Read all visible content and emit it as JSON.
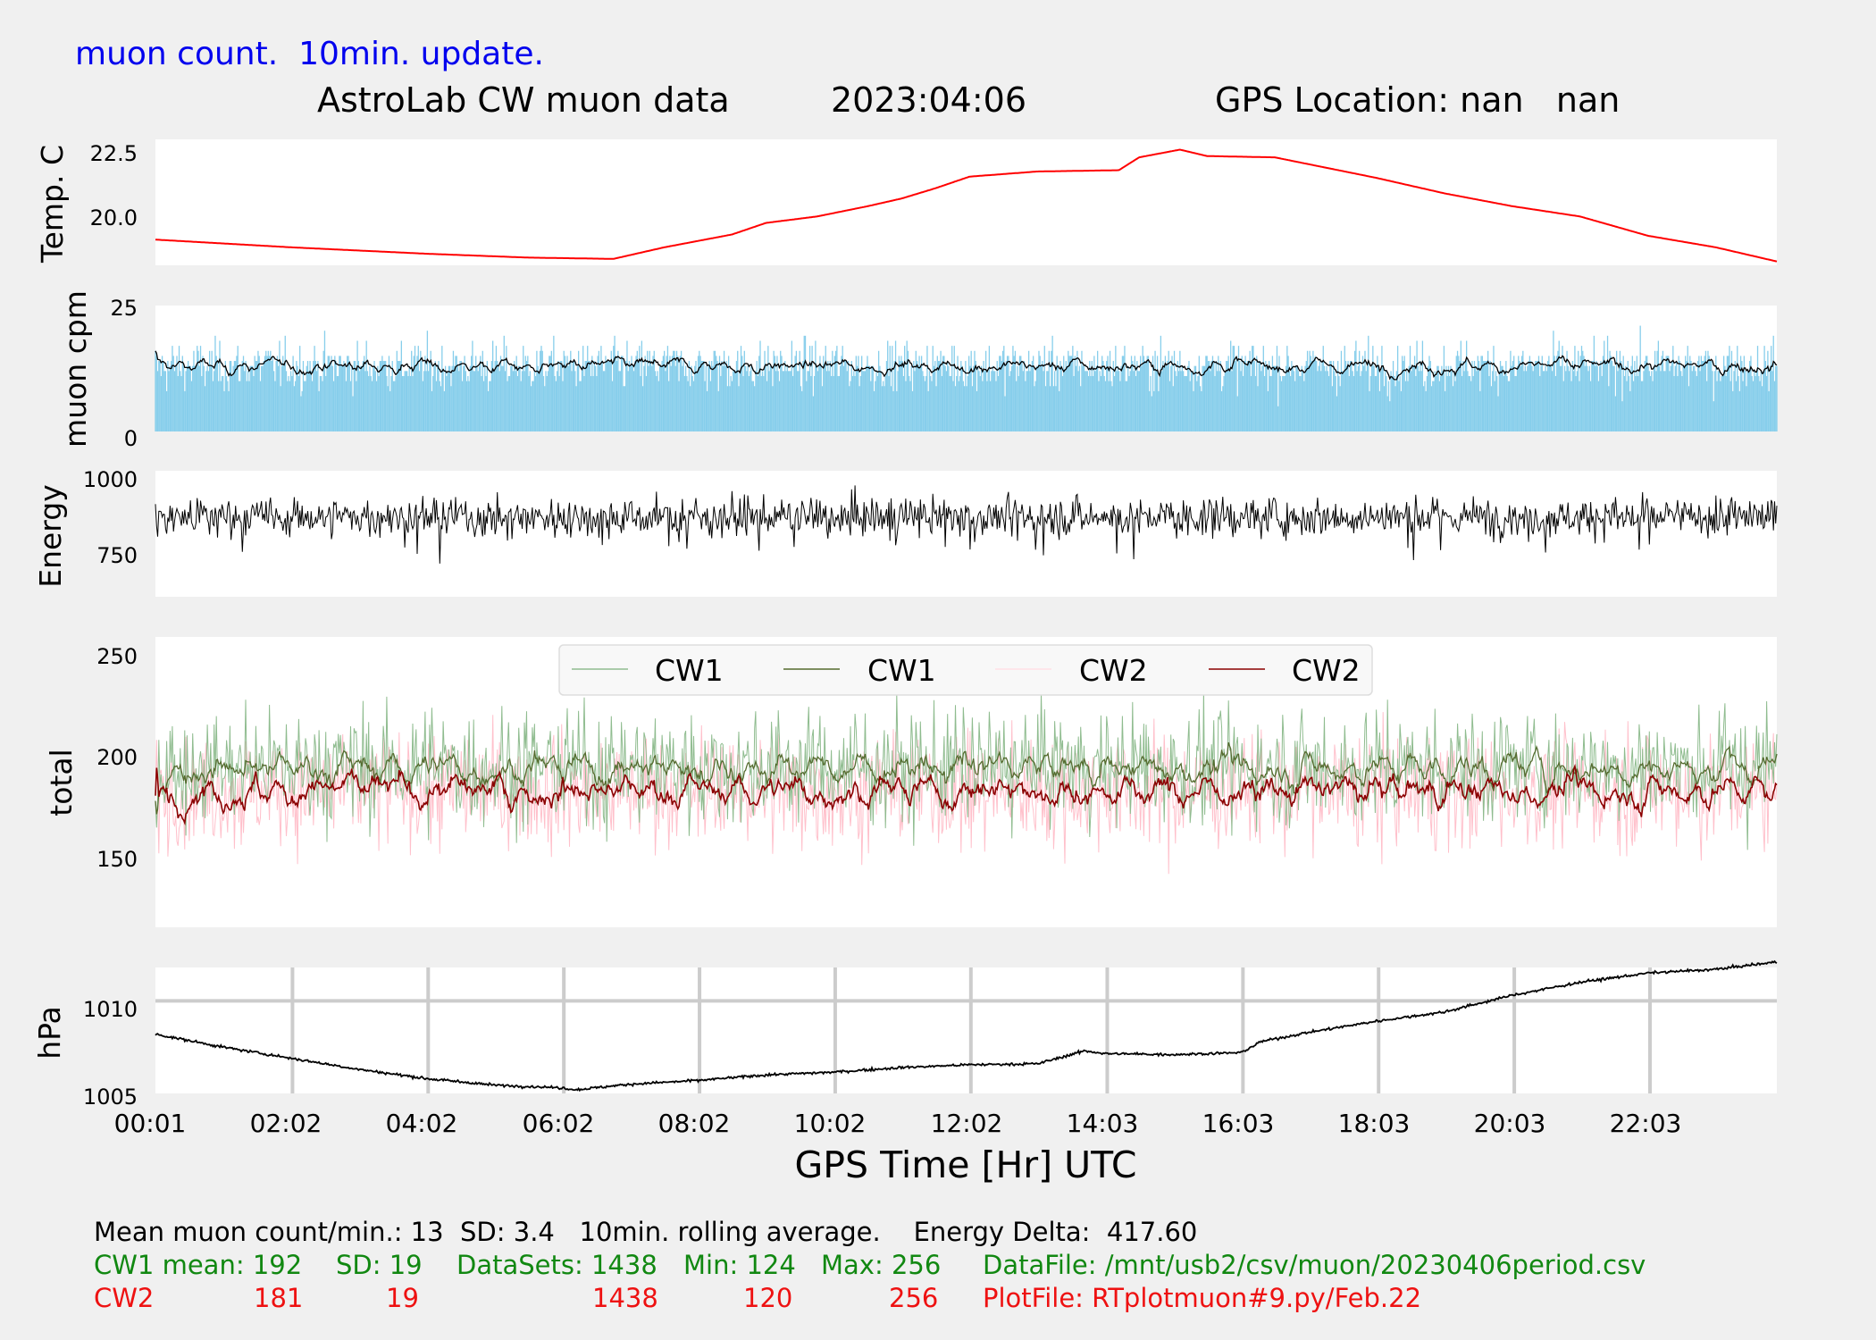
{
  "header": {
    "update_tag": "muon count.  10min. update.",
    "title": "AstroLab CW muon data",
    "date": "2023:04:06",
    "gps_location": "GPS Location: nan   nan"
  },
  "chart_data": [
    {
      "type": "line",
      "ylabel": "Temp. C",
      "yticks": [
        "20.0",
        "22.5"
      ],
      "ylim": [
        18.2,
        23.1
      ],
      "color": "#ff0000",
      "series": [
        {
          "x": [
            0,
            2,
            4,
            5.5,
            6.75,
            7,
            7.5,
            8.5,
            9,
            9.75,
            10.5,
            11,
            11.5,
            12,
            13,
            14.2,
            14.5,
            15,
            15.1,
            15.5,
            16.5,
            18,
            19,
            20,
            21,
            22,
            23,
            23.9
          ],
          "values": [
            19.2,
            18.9,
            18.65,
            18.5,
            18.45,
            18.6,
            18.9,
            19.4,
            19.85,
            20.1,
            20.5,
            20.8,
            21.2,
            21.65,
            21.85,
            21.9,
            22.4,
            22.65,
            22.7,
            22.45,
            22.4,
            21.6,
            21.0,
            20.5,
            20.1,
            19.35,
            18.9,
            18.35
          ]
        }
      ]
    },
    {
      "type": "bar",
      "ylabel": "muon cpm",
      "yticks": [
        "0",
        "25"
      ],
      "ylim": [
        0,
        25
      ],
      "bar_color": "#87ceeb",
      "line_color": "#000000",
      "mean": 13,
      "sd": 3.4
    },
    {
      "type": "line",
      "ylabel": "Energy",
      "yticks": [
        "750",
        "1000"
      ],
      "ylim": [
        620,
        1030
      ],
      "color": "#000000",
      "mean": 880
    },
    {
      "type": "line",
      "ylabel": "total",
      "yticks": [
        "150",
        "200",
        "250"
      ],
      "ylim": [
        115,
        255
      ],
      "legend": [
        "CW1",
        "CW1",
        "CW2",
        "CW2"
      ],
      "legend_placement": "top-center",
      "series": [
        {
          "name": "CW1",
          "color": "#8fbc8f",
          "mean": 192,
          "sd": 19
        },
        {
          "name": "CW1",
          "color": "#556b2f",
          "mean": 192
        },
        {
          "name": "CW2",
          "color": "#ffc0cb",
          "mean": 181,
          "sd": 19
        },
        {
          "name": "CW2",
          "color": "#8b0000",
          "mean": 181
        }
      ]
    },
    {
      "type": "line",
      "ylabel": "hPa",
      "yticks": [
        "1005",
        "1010"
      ],
      "ylim": [
        1005,
        1011.8
      ],
      "grid": true,
      "color": "#000000",
      "xlabel": "GPS Time  [Hr] UTC",
      "xticks": [
        "00:01",
        "02:02",
        "04:02",
        "06:02",
        "08:02",
        "10:02",
        "12:02",
        "14:03",
        "16:03",
        "18:03",
        "20:03",
        "22:03"
      ],
      "xlim": [
        0,
        23.9
      ],
      "series": [
        {
          "x": [
            0,
            1,
            2,
            3,
            4,
            5,
            6,
            6.2,
            7,
            8,
            9,
            10,
            11,
            12,
            13,
            13.4,
            13.7,
            14,
            15,
            16,
            16.3,
            17,
            18,
            19,
            20,
            21,
            22,
            23,
            23.9
          ],
          "values": [
            1008.2,
            1007.5,
            1006.9,
            1006.3,
            1005.8,
            1005.45,
            1005.3,
            1005.2,
            1005.5,
            1005.7,
            1006.0,
            1006.15,
            1006.4,
            1006.55,
            1006.6,
            1007.0,
            1007.3,
            1007.15,
            1007.1,
            1007.2,
            1007.8,
            1008.3,
            1008.9,
            1009.4,
            1010.3,
            1011.0,
            1011.5,
            1011.7,
            1012.1
          ]
        }
      ]
    }
  ],
  "footer": {
    "line1": "Mean muon count/min.: 13  SD: 3.4   10min. rolling average.    Energy Delta:  417.60",
    "cw1": {
      "label": "CW1 mean: 192",
      "sd": "SD: 19",
      "datasets": "DataSets: 1438",
      "min": "Min: 124",
      "max": "Max: 256",
      "file": "DataFile: /mnt/usb2/csv/muon/20230406period.csv"
    },
    "cw2": {
      "label": "CW2",
      "mean": "181",
      "sd": "19",
      "datasets": "1438",
      "min": "120",
      "max": "256",
      "file": "PlotFile: RTplotmuon#9.py/Feb.22"
    }
  }
}
